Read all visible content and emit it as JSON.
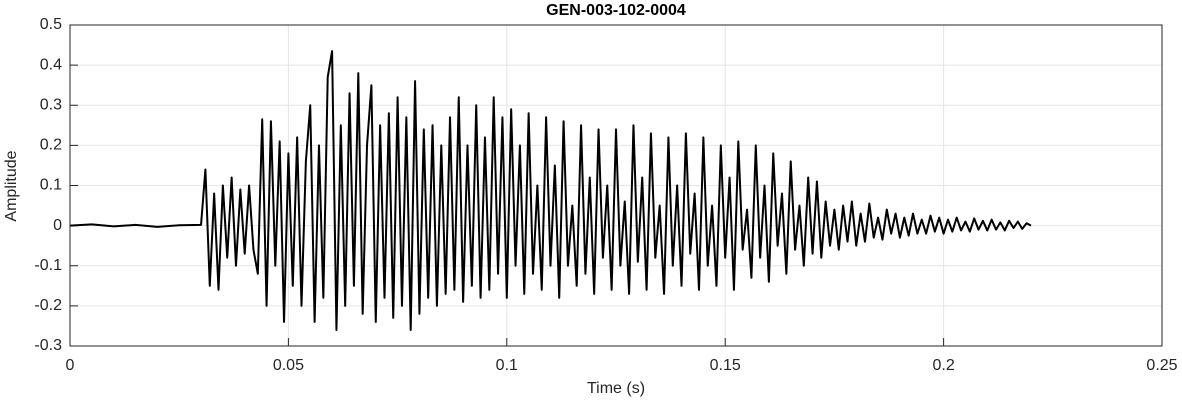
{
  "chart_data": {
    "type": "line",
    "title": "GEN-003-102-0004",
    "x_label": "Time (s)",
    "y_label": "Amplitude",
    "xlim": [
      0,
      0.25
    ],
    "xticks": [
      0,
      0.05,
      0.1,
      0.15,
      0.2,
      0.25
    ],
    "ylim": [
      -0.3,
      0.5
    ],
    "yticks": [
      -0.3,
      -0.2,
      -0.1,
      0,
      0.1,
      0.2,
      0.3,
      0.4,
      0.5
    ],
    "grid": true,
    "series": [
      {
        "color": "#000000",
        "x": [
          0,
          0.005,
          0.01,
          0.015,
          0.02,
          0.025,
          0.03,
          0.031,
          0.032,
          0.033,
          0.034,
          0.035,
          0.036,
          0.037,
          0.038,
          0.039,
          0.04,
          0.041,
          0.042,
          0.043,
          0.044,
          0.045,
          0.046,
          0.047,
          0.048,
          0.049,
          0.05,
          0.051,
          0.052,
          0.053,
          0.054,
          0.055,
          0.056,
          0.057,
          0.058,
          0.059,
          0.06,
          0.061,
          0.062,
          0.063,
          0.064,
          0.065,
          0.066,
          0.067,
          0.068,
          0.069,
          0.07,
          0.071,
          0.072,
          0.073,
          0.074,
          0.075,
          0.076,
          0.077,
          0.078,
          0.079,
          0.08,
          0.081,
          0.082,
          0.083,
          0.084,
          0.085,
          0.086,
          0.087,
          0.088,
          0.089,
          0.09,
          0.091,
          0.092,
          0.093,
          0.094,
          0.095,
          0.096,
          0.097,
          0.098,
          0.099,
          0.1,
          0.101,
          0.102,
          0.103,
          0.104,
          0.105,
          0.106,
          0.107,
          0.108,
          0.109,
          0.11,
          0.111,
          0.112,
          0.113,
          0.114,
          0.115,
          0.116,
          0.117,
          0.118,
          0.119,
          0.12,
          0.121,
          0.122,
          0.123,
          0.124,
          0.125,
          0.126,
          0.127,
          0.128,
          0.129,
          0.13,
          0.131,
          0.132,
          0.133,
          0.134,
          0.135,
          0.136,
          0.137,
          0.138,
          0.139,
          0.14,
          0.141,
          0.142,
          0.143,
          0.144,
          0.145,
          0.146,
          0.147,
          0.148,
          0.149,
          0.15,
          0.151,
          0.152,
          0.153,
          0.154,
          0.155,
          0.156,
          0.157,
          0.158,
          0.159,
          0.16,
          0.161,
          0.162,
          0.163,
          0.164,
          0.165,
          0.166,
          0.167,
          0.168,
          0.169,
          0.17,
          0.171,
          0.172,
          0.173,
          0.174,
          0.175,
          0.176,
          0.177,
          0.178,
          0.179,
          0.18,
          0.181,
          0.182,
          0.183,
          0.184,
          0.185,
          0.186,
          0.187,
          0.188,
          0.189,
          0.19,
          0.191,
          0.192,
          0.193,
          0.194,
          0.195,
          0.196,
          0.197,
          0.198,
          0.199,
          0.2,
          0.201,
          0.202,
          0.203,
          0.204,
          0.205,
          0.206,
          0.207,
          0.208,
          0.209,
          0.21,
          0.211,
          0.212,
          0.213,
          0.214,
          0.215,
          0.216,
          0.217,
          0.218,
          0.219,
          0.22
        ],
        "values": [
          0,
          0.003,
          -0.002,
          0.002,
          -0.003,
          0.001,
          0.002,
          0.14,
          -0.15,
          0.08,
          -0.16,
          0.1,
          -0.08,
          0.12,
          -0.1,
          0.09,
          -0.07,
          0.1,
          -0.06,
          -0.12,
          0.265,
          -0.2,
          0.26,
          -0.1,
          0.21,
          -0.24,
          0.18,
          -0.15,
          0.22,
          -0.2,
          0.16,
          0.3,
          -0.24,
          0.2,
          -0.18,
          0.37,
          0.435,
          -0.26,
          0.25,
          -0.2,
          0.33,
          -0.15,
          0.38,
          -0.22,
          0.2,
          0.35,
          -0.24,
          0.25,
          -0.18,
          0.28,
          -0.23,
          0.32,
          -0.2,
          0.27,
          -0.26,
          0.36,
          -0.22,
          0.24,
          -0.18,
          0.25,
          -0.2,
          0.2,
          -0.17,
          0.27,
          -0.16,
          0.32,
          -0.19,
          0.2,
          -0.15,
          0.3,
          -0.18,
          0.22,
          -0.16,
          0.32,
          -0.12,
          0.27,
          -0.18,
          0.29,
          -0.1,
          0.2,
          -0.17,
          0.28,
          -0.12,
          0.1,
          -0.16,
          0.27,
          -0.1,
          0.15,
          -0.18,
          0.26,
          -0.1,
          0.05,
          -0.15,
          0.25,
          -0.12,
          0.12,
          -0.17,
          0.24,
          -0.08,
          0.1,
          -0.16,
          0.24,
          -0.1,
          0.06,
          -0.17,
          0.25,
          -0.09,
          0.12,
          -0.16,
          0.23,
          -0.08,
          0.05,
          -0.17,
          0.22,
          -0.1,
          0.1,
          -0.15,
          0.23,
          -0.07,
          0.08,
          -0.16,
          0.22,
          -0.1,
          0.05,
          -0.15,
          0.2,
          -0.08,
          0.12,
          -0.16,
          0.21,
          -0.06,
          0.04,
          -0.13,
          0.2,
          -0.08,
          0.1,
          -0.14,
          0.18,
          -0.05,
          0.08,
          -0.12,
          0.16,
          -0.06,
          0.05,
          -0.1,
          0.12,
          -0.07,
          0.11,
          -0.08,
          0.06,
          -0.05,
          0.04,
          -0.06,
          0.05,
          -0.04,
          0.06,
          -0.05,
          0.03,
          -0.04,
          0.055,
          -0.03,
          0.02,
          -0.035,
          0.04,
          -0.02,
          0.03,
          -0.03,
          0.02,
          -0.025,
          0.03,
          -0.02,
          0.015,
          -0.02,
          0.025,
          -0.015,
          0.02,
          -0.02,
          0.015,
          -0.015,
          0.02,
          -0.012,
          0.01,
          -0.015,
          0.018,
          -0.01,
          0.012,
          -0.012,
          0.015,
          -0.01,
          0.008,
          -0.012,
          0.012,
          -0.006,
          0.01,
          -0.008,
          0.006,
          0
        ]
      }
    ]
  }
}
